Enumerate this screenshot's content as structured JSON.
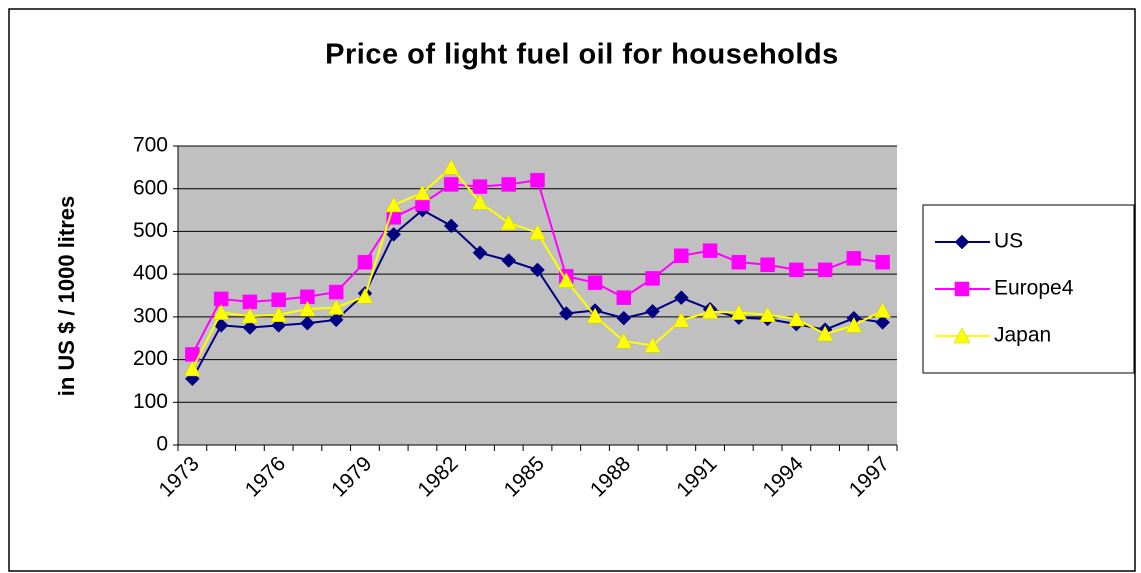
{
  "chart_data": {
    "type": "line",
    "title": "Price of light fuel oil for households",
    "y_label": "in US $ / 1000 litres",
    "categories": [
      "1973",
      null,
      null,
      "1976",
      null,
      null,
      "1979",
      null,
      null,
      "1982",
      null,
      null,
      "1985",
      null,
      null,
      "1988",
      null,
      null,
      "1991",
      null,
      null,
      "1994",
      null,
      null,
      "1997"
    ],
    "series": [
      {
        "name": "US",
        "color": "#000080",
        "marker": "diamond",
        "values": [
          155,
          280,
          275,
          280,
          285,
          293,
          355,
          493,
          550,
          513,
          450,
          432,
          410,
          308,
          315,
          297,
          313,
          345,
          318,
          298,
          295,
          283,
          270,
          297,
          287
        ]
      },
      {
        "name": "Europe4",
        "color": "#ff00ff",
        "marker": "square",
        "values": [
          212,
          342,
          335,
          340,
          347,
          358,
          428,
          533,
          565,
          610,
          605,
          610,
          620,
          395,
          380,
          345,
          390,
          443,
          455,
          428,
          422,
          410,
          410,
          437,
          428
        ]
      },
      {
        "name": "Japan",
        "color": "#ffff00",
        "marker": "triangle",
        "values": [
          178,
          310,
          302,
          305,
          318,
          322,
          348,
          562,
          590,
          650,
          568,
          520,
          497,
          385,
          302,
          243,
          233,
          292,
          312,
          310,
          305,
          295,
          260,
          280,
          315
        ]
      }
    ],
    "ylim": [
      0,
      700
    ],
    "yticks": [
      0,
      100,
      200,
      300,
      400,
      500,
      600,
      700
    ],
    "grid": true,
    "legend": "right"
  }
}
